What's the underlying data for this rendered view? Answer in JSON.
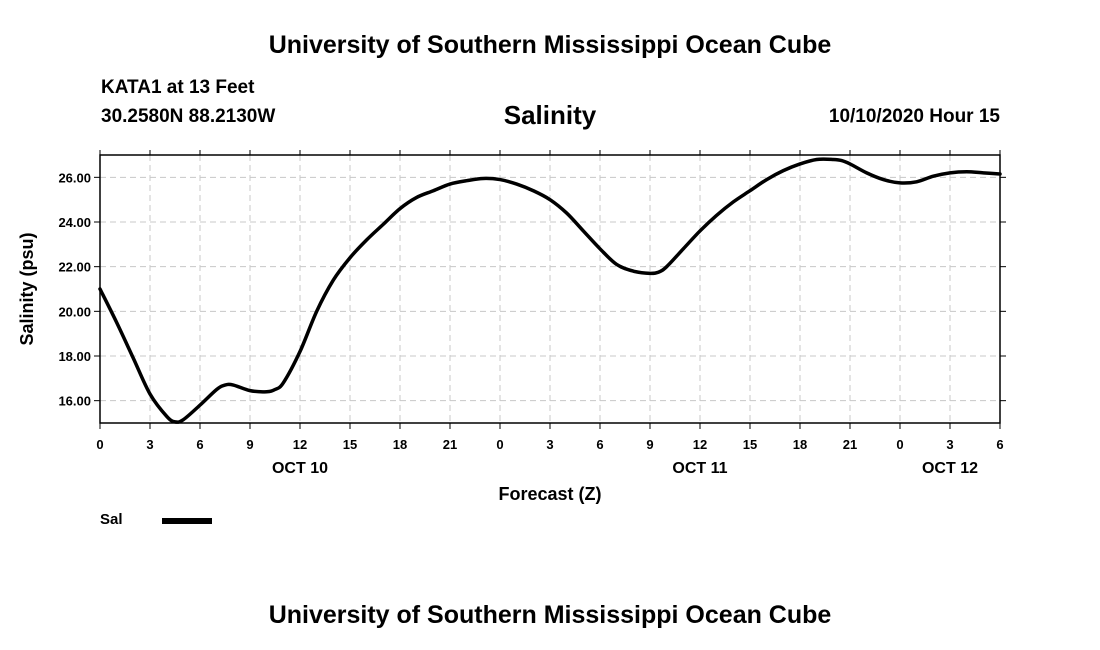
{
  "header": {
    "title_top": "University of Southern Mississippi Ocean Cube",
    "title_bottom": "University of Southern Mississippi Ocean Cube",
    "station": "KATA1 at 13 Feet",
    "coords": "30.2580N 88.2130W",
    "datetime": "10/10/2020 Hour 15"
  },
  "chart_data": {
    "type": "line",
    "title": "Salinity",
    "xlabel": "Forecast (Z)",
    "ylabel": "Salinity (psu)",
    "xlim": [
      0,
      54
    ],
    "ylim": [
      15,
      27
    ],
    "yticks": [
      16,
      18,
      20,
      22,
      24,
      26
    ],
    "ytick_labels": [
      "16.00",
      "18.00",
      "20.00",
      "22.00",
      "24.00",
      "26.00"
    ],
    "xticks": [
      0,
      3,
      6,
      9,
      12,
      15,
      18,
      21,
      24,
      27,
      30,
      33,
      36,
      39,
      42,
      45,
      48,
      51,
      54
    ],
    "xtick_labels": [
      "0",
      "3",
      "6",
      "9",
      "12",
      "15",
      "18",
      "21",
      "0",
      "3",
      "6",
      "9",
      "12",
      "15",
      "18",
      "21",
      "0",
      "3",
      "6"
    ],
    "date_labels": [
      {
        "hour": 12,
        "label": "OCT 10"
      },
      {
        "hour": 36,
        "label": "OCT 11"
      },
      {
        "hour": 51,
        "label": "OCT 12"
      }
    ],
    "grid": true,
    "series": [
      {
        "name": "Sal",
        "x": [
          0,
          1,
          2,
          3,
          4,
          4.5,
          5,
          6,
          7,
          7.5,
          8,
          9,
          10,
          10.5,
          11,
          12,
          13,
          14,
          15,
          16,
          17,
          18,
          19,
          20,
          21,
          22,
          23,
          24,
          25,
          26,
          27,
          28,
          29,
          30,
          31,
          32,
          33,
          33.5,
          34,
          35,
          36,
          37,
          38,
          39,
          40,
          41,
          42,
          43,
          44,
          44.5,
          45,
          46,
          47,
          48,
          49,
          50,
          51,
          52,
          53,
          54
        ],
        "values": [
          21.0,
          19.5,
          17.9,
          16.3,
          15.3,
          15.05,
          15.15,
          15.8,
          16.5,
          16.7,
          16.7,
          16.45,
          16.4,
          16.5,
          16.8,
          18.2,
          20.0,
          21.4,
          22.4,
          23.2,
          23.9,
          24.6,
          25.1,
          25.4,
          25.7,
          25.85,
          25.95,
          25.9,
          25.7,
          25.4,
          25.0,
          24.4,
          23.6,
          22.8,
          22.1,
          21.8,
          21.7,
          21.75,
          22.0,
          22.8,
          23.6,
          24.3,
          24.9,
          25.4,
          25.9,
          26.3,
          26.6,
          26.8,
          26.8,
          26.75,
          26.6,
          26.2,
          25.9,
          25.75,
          25.8,
          26.05,
          26.2,
          26.25,
          26.2,
          26.15
        ]
      }
    ],
    "legend": [
      {
        "label": "Sal",
        "color": "#000000"
      }
    ]
  }
}
